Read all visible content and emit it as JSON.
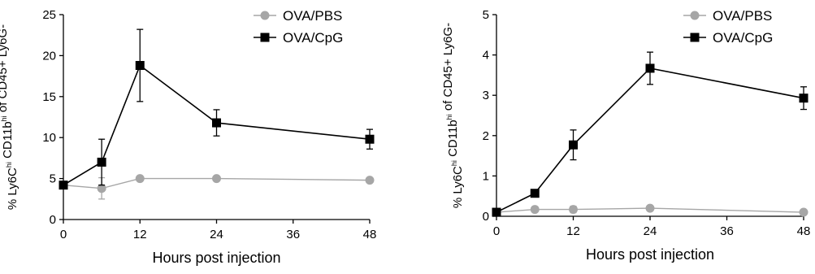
{
  "chart_data": [
    {
      "type": "line",
      "xlabel": "Hours post injection",
      "ylabel": {
        "parts": [
          {
            "text": "% Ly6C",
            "sup": false
          },
          {
            "text": "hi",
            "sup": true
          },
          {
            "text": " CD11b",
            "sup": false
          },
          {
            "text": "hi",
            "sup": true
          },
          {
            "text": " of CD45+ Ly6G-",
            "sup": false
          }
        ]
      },
      "xlim": [
        0,
        48
      ],
      "ylim": [
        0,
        25
      ],
      "xticks": [
        0,
        12,
        24,
        36,
        48
      ],
      "yticks": [
        0,
        5,
        10,
        15,
        20,
        25
      ],
      "xtick_labels": [
        "0",
        "12",
        "24",
        "36",
        "48"
      ],
      "ytick_labels": [
        "0",
        "5",
        "10",
        "15",
        "20",
        "25"
      ],
      "legend_position": "top-right",
      "grid": false,
      "series": [
        {
          "name": "OVA/PBS",
          "marker": "circle",
          "color": "#a6a6a6",
          "x": [
            0,
            6,
            12,
            24,
            48
          ],
          "y": [
            4.2,
            3.8,
            5.0,
            5.0,
            4.8
          ],
          "error": [
            0.4,
            1.3,
            0.2,
            0.2,
            0.2
          ]
        },
        {
          "name": "OVA/CpG",
          "marker": "square",
          "color": "#000000",
          "x": [
            0,
            6,
            12,
            24,
            48
          ],
          "y": [
            4.2,
            7.0,
            18.8,
            11.8,
            9.8
          ],
          "error": [
            0.4,
            2.8,
            4.4,
            1.6,
            1.2
          ]
        }
      ]
    },
    {
      "type": "line",
      "xlabel": "Hours post injection",
      "ylabel": {
        "parts": [
          {
            "text": "% Ly6C",
            "sup": false
          },
          {
            "text": "hi",
            "sup": true
          },
          {
            "text": " CD11b",
            "sup": false
          },
          {
            "text": "hi",
            "sup": true
          },
          {
            "text": " of CD45+ Ly6G-",
            "sup": false
          }
        ]
      },
      "xlim": [
        0,
        48
      ],
      "ylim": [
        0,
        5
      ],
      "xticks": [
        0,
        12,
        24,
        36,
        48
      ],
      "yticks": [
        0,
        1,
        2,
        3,
        4,
        5
      ],
      "xtick_labels": [
        "0",
        "12",
        "24",
        "36",
        "48"
      ],
      "ytick_labels": [
        "0",
        "1",
        "2",
        "3",
        "4",
        "5"
      ],
      "legend_position": "top-right",
      "grid": false,
      "series": [
        {
          "name": "OVA/PBS",
          "marker": "circle",
          "color": "#a6a6a6",
          "x": [
            0,
            6,
            12,
            24,
            48
          ],
          "y": [
            0.1,
            0.17,
            0.17,
            0.2,
            0.1
          ],
          "error": [
            0.03,
            0.03,
            0.08,
            0.06,
            0.03
          ]
        },
        {
          "name": "OVA/CpG",
          "marker": "square",
          "color": "#000000",
          "x": [
            0,
            6,
            12,
            24,
            48
          ],
          "y": [
            0.1,
            0.57,
            1.77,
            3.67,
            2.93
          ],
          "error": [
            0.03,
            0.05,
            0.37,
            0.4,
            0.28
          ]
        }
      ]
    }
  ]
}
